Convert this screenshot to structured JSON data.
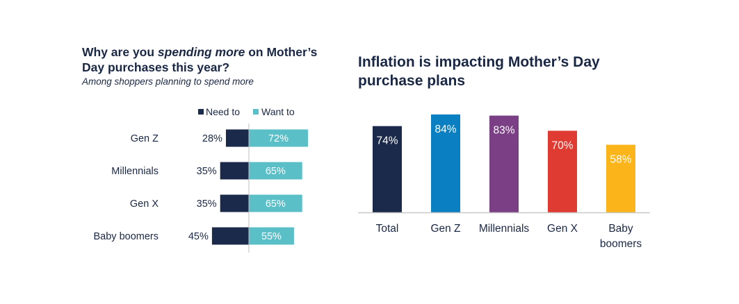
{
  "left_chart": {
    "title_pre": "Why are you ",
    "title_emph": "spending more",
    "title_post": " on Mother’s Day purchases this year?",
    "subtitle": "Among shoppers planning to spend more"
  },
  "right_chart": {
    "title": "Inflation is impacting Mother’s Day purchase plans"
  },
  "colors": {
    "need": "#1b2a4a",
    "want": "#5bbfc8",
    "total": "#1b2a4a",
    "genz": "#0a7fc1",
    "millennials": "#7b3f86",
    "genx": "#e03b33",
    "boomers": "#fbb51a"
  },
  "chart_data": [
    {
      "type": "bar",
      "orientation": "horizontal-diverging",
      "title": "Why are you spending more on Mother’s Day purchases this year?",
      "subtitle": "Among shoppers planning to spend more",
      "categories": [
        "Gen Z",
        "Millennials",
        "Gen X",
        "Baby boomers"
      ],
      "series": [
        {
          "name": "Need to",
          "values": [
            28,
            35,
            35,
            45
          ],
          "labels": [
            "28%",
            "35%",
            "35%",
            "45%"
          ]
        },
        {
          "name": "Want to",
          "values": [
            72,
            65,
            65,
            55
          ],
          "labels": [
            "72%",
            "65%",
            "65%",
            "55%"
          ]
        }
      ],
      "legend": "top"
    },
    {
      "type": "bar",
      "title": "Inflation is impacting Mother’s Day purchase plans",
      "categories": [
        "Total",
        "Gen Z",
        "Millennials",
        "Gen X",
        "Baby boomers"
      ],
      "category_lines": [
        [
          "Total"
        ],
        [
          "Gen Z"
        ],
        [
          "Millennials"
        ],
        [
          "Gen X"
        ],
        [
          "Baby",
          "boomers"
        ]
      ],
      "values": [
        74,
        84,
        83,
        70,
        58
      ],
      "labels": [
        "74%",
        "84%",
        "83%",
        "70%",
        "58%"
      ],
      "ylim": [
        0,
        100
      ]
    }
  ]
}
